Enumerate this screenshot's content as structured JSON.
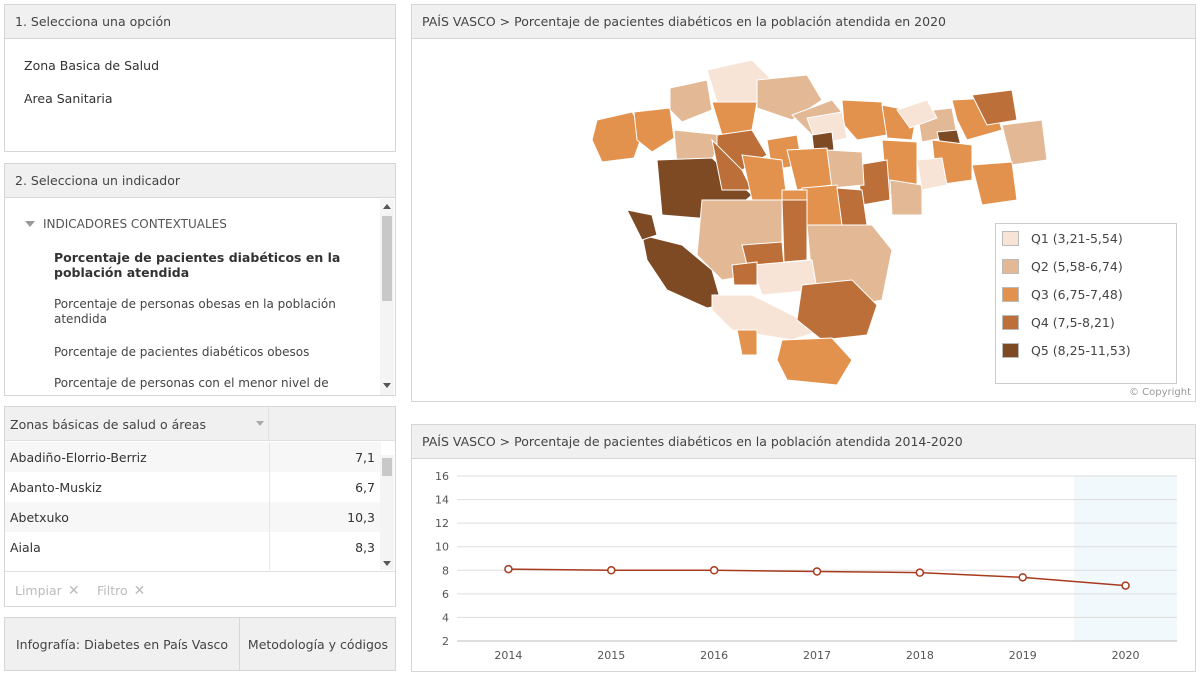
{
  "option_panel": {
    "title": "1. Selecciona una opción",
    "options": [
      "Zona Basica de Salud",
      "Area Sanitaria"
    ]
  },
  "indicator_panel": {
    "title": "2. Selecciona un indicador",
    "group": "INDICADORES CONTEXTUALES",
    "items": [
      "Porcentaje de pacientes diabéticos en la población atendida",
      "Porcentaje de personas obesas en la población atendida",
      "Porcentaje de pacientes diabéticos obesos",
      "Porcentaje de personas con el menor nivel de"
    ]
  },
  "table": {
    "header": "Zonas básicas de salud o áreas",
    "rows": [
      {
        "name": "Abadiño-Elorrio-Berriz",
        "value": "7,1"
      },
      {
        "name": "Abanto-Muskiz",
        "value": "6,7"
      },
      {
        "name": "Abetxuko",
        "value": "10,3"
      },
      {
        "name": "Aiala",
        "value": "8,3"
      }
    ],
    "clear_label": "Limpiar",
    "filter_label": "Filtro"
  },
  "buttons": {
    "infographic": "Infografía: Diabetes en País Vasco",
    "methodology": "Metodología y códigos"
  },
  "map_panel": {
    "title": "PAÍS VASCO > Porcentaje de pacientes diabéticos en la población atendida en 2020",
    "copyright": "© Copyright",
    "colors": {
      "q1": "#f7e4d6",
      "q2": "#e2b895",
      "q3": "#e2924d",
      "q4": "#bd6f39",
      "q5": "#7e4a24"
    },
    "legend": [
      {
        "label": "Q1 (3,21-5,54)",
        "color": "#f7e4d6"
      },
      {
        "label": "Q2 (5,58-6,74)",
        "color": "#e2b895"
      },
      {
        "label": "Q3 (6,75-7,48)",
        "color": "#e2924d"
      },
      {
        "label": "Q4 (7,5-8,21)",
        "color": "#bd6f39"
      },
      {
        "label": "Q5 (8,25-11,53)",
        "color": "#7e4a24"
      }
    ]
  },
  "chart_panel": {
    "title": "PAÍS VASCO > Porcentaje de pacientes diabéticos en la población atendida 2014-2020"
  },
  "chart_data": {
    "type": "line",
    "x": [
      "2014",
      "2015",
      "2016",
      "2017",
      "2018",
      "2019",
      "2020"
    ],
    "series": [
      {
        "values": [
          8.1,
          8.0,
          8.0,
          7.9,
          7.8,
          7.4,
          6.7
        ],
        "color": "#a83a1e"
      }
    ],
    "yticks": [
      2,
      4,
      6,
      8,
      10,
      12,
      14,
      16
    ],
    "ylim": [
      2,
      16
    ],
    "grid": true,
    "highlight_category": "2020",
    "highlight_color": "#f2f9fc"
  }
}
